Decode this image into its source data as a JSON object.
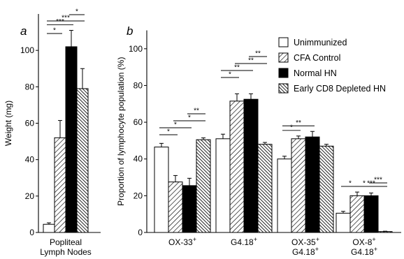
{
  "chart_data": [
    {
      "panel": "a",
      "type": "bar",
      "ylabel": "Weight (mg)",
      "xlabel": "",
      "ylim": [
        0,
        120
      ],
      "yticks": [
        0,
        20,
        40,
        60,
        80,
        100
      ],
      "categories": [
        "Popliteal\nLymph Nodes"
      ],
      "series": [
        {
          "name": "Unimmunized",
          "fill": "white",
          "values": [
            4.5
          ],
          "errors": [
            0.8
          ]
        },
        {
          "name": "CFA Control",
          "fill": "hatch-back",
          "values": [
            52
          ],
          "errors": [
            9.5
          ]
        },
        {
          "name": "Normal HN",
          "fill": "solid",
          "values": [
            102
          ],
          "errors": [
            9
          ]
        },
        {
          "name": "Early CD8 Depleted HN",
          "fill": "hatch-dense",
          "values": [
            79
          ],
          "errors": [
            11
          ]
        }
      ],
      "significance": [
        {
          "from": 1,
          "to": 2,
          "label": "*"
        },
        {
          "from": 1,
          "to": 3,
          "label": "***"
        },
        {
          "from": 1,
          "to": 4,
          "label": "***"
        },
        {
          "from": 3,
          "to": 4,
          "label": "*"
        }
      ]
    },
    {
      "panel": "b",
      "type": "bar",
      "ylabel": "Proportion of lymphocyte population (%)",
      "xlabel": "",
      "ylim": [
        0,
        110
      ],
      "yticks": [
        0,
        20,
        40,
        60,
        80,
        100
      ],
      "legend_position": "top-right",
      "categories": [
        "OX-33+",
        "G4.18+",
        "OX-35+\nG4.18+",
        "OX-8+\nG4.18+"
      ],
      "series": [
        {
          "name": "Unimmunized",
          "fill": "white",
          "values": [
            46.5,
            51,
            40,
            10.5
          ],
          "errors": [
            2,
            2.5,
            1.5,
            1
          ]
        },
        {
          "name": "CFA Control",
          "fill": "hatch-back",
          "values": [
            27.5,
            71.5,
            51,
            20
          ],
          "errors": [
            3.5,
            4,
            1.5,
            2
          ]
        },
        {
          "name": "Normal HN",
          "fill": "solid",
          "values": [
            25.5,
            72.5,
            52,
            20
          ],
          "errors": [
            4,
            3,
            3,
            1.5
          ]
        },
        {
          "name": "Early CD8 Depleted HN",
          "fill": "hatch-dense",
          "values": [
            50.5,
            48,
            47,
            0.5
          ],
          "errors": [
            1,
            1,
            1,
            0.2
          ]
        }
      ],
      "significance": [
        {
          "category": 0,
          "from": 1,
          "to": 2,
          "label": "*"
        },
        {
          "category": 0,
          "from": 1,
          "to": 3,
          "label": "*"
        },
        {
          "category": 0,
          "from": 2,
          "to": 4,
          "label": "*"
        },
        {
          "category": 0,
          "from": 3,
          "to": 4,
          "label": "**"
        },
        {
          "category": 1,
          "from": 1,
          "to": 2,
          "label": "*"
        },
        {
          "category": 1,
          "from": 1,
          "to": 3,
          "label": "**"
        },
        {
          "category": 1,
          "from": 2,
          "to": 4,
          "label": "**"
        },
        {
          "category": 1,
          "from": 3,
          "to": 4,
          "label": "**"
        },
        {
          "category": 2,
          "from": 1,
          "to": 2,
          "label": "*"
        },
        {
          "category": 2,
          "from": 1,
          "to": 3,
          "label": "**"
        },
        {
          "category": 3,
          "from": 1,
          "to": 2,
          "label": "*"
        },
        {
          "category": 3,
          "from": 1,
          "to": 4,
          "label": "*"
        },
        {
          "category": 3,
          "from": 2,
          "to": 4,
          "label": "***"
        },
        {
          "category": 3,
          "from": 3,
          "to": 4,
          "label": "***"
        }
      ]
    }
  ]
}
